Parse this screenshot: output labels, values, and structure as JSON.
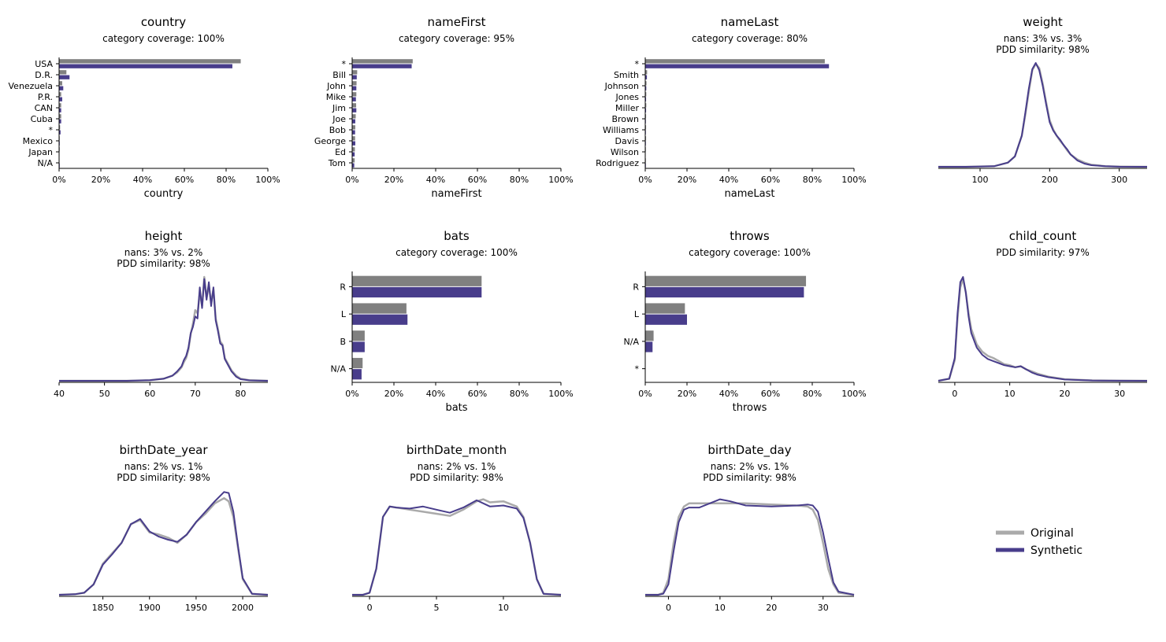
{
  "legend": {
    "original_label": "Original",
    "synthetic_label": "Synthetic",
    "placement": "bottom-right"
  },
  "colors": {
    "original_bar": "#808080",
    "original_line": "#aaaaaa",
    "synthetic": "#483d8b"
  },
  "chart_data": [
    {
      "name": "country",
      "type": "bar",
      "title": "country",
      "subtitle": "category coverage: 100%",
      "xlabel": "country",
      "xlim": [
        0,
        100
      ],
      "xticks": [
        "0%",
        "20%",
        "40%",
        "60%",
        "80%",
        "100%"
      ],
      "categories": [
        "USA",
        "D.R.",
        "Venezuela",
        "P.R.",
        "CAN",
        "Cuba",
        "*",
        "Mexico",
        "Japan",
        "N/A"
      ],
      "series": [
        {
          "values": [
            87,
            3.5,
            1.5,
            1,
            1,
            1,
            0.5,
            0.3,
            0.3,
            0.2
          ]
        },
        {
          "values": [
            83,
            5,
            2,
            1.5,
            1,
            1,
            0.7,
            0.3,
            0.2,
            0.3
          ]
        }
      ]
    },
    {
      "name": "nameFirst",
      "type": "bar",
      "title": "nameFirst",
      "subtitle": "category coverage: 95%",
      "xlabel": "nameFirst",
      "xlim": [
        0,
        100
      ],
      "xticks": [
        "0%",
        "20%",
        "40%",
        "60%",
        "80%",
        "100%"
      ],
      "categories": [
        "*",
        "Bill",
        "John",
        "Mike",
        "Jim",
        "Joe",
        "Bob",
        "George",
        "Ed",
        "Tom"
      ],
      "series": [
        {
          "values": [
            29,
            2.4,
            2.1,
            2,
            1.9,
            1.7,
            1.5,
            1.4,
            1.3,
            1.2
          ]
        },
        {
          "values": [
            28.5,
            2.2,
            2,
            1.8,
            2,
            1.5,
            1.4,
            1.5,
            1.2,
            1
          ]
        }
      ]
    },
    {
      "name": "nameLast",
      "type": "bar",
      "title": "nameLast",
      "subtitle": "category coverage: 80%",
      "xlabel": "nameLast",
      "xlim": [
        0,
        100
      ],
      "xticks": [
        "0%",
        "20%",
        "40%",
        "60%",
        "80%",
        "100%"
      ],
      "categories": [
        "*",
        "Smith",
        "Johnson",
        "Jones",
        "Miller",
        "Brown",
        "Williams",
        "Davis",
        "Wilson",
        "Rodriguez"
      ],
      "series": [
        {
          "values": [
            86,
            0.9,
            0.6,
            0.5,
            0.5,
            0.4,
            0.4,
            0.4,
            0.3,
            0.3
          ]
        },
        {
          "values": [
            88,
            0.8,
            0.5,
            0.4,
            0.4,
            0.3,
            0.3,
            0.3,
            0.2,
            0.3
          ]
        }
      ]
    },
    {
      "name": "weight",
      "type": "line",
      "title": "weight",
      "subtitle": [
        "nans: 3% vs. 3%",
        "PDD similarity: 98%"
      ],
      "xlim": [
        40,
        340
      ],
      "xticks": [
        100,
        200,
        300
      ],
      "ylim": [
        0,
        1
      ],
      "series": [
        {
          "x": [
            40,
            80,
            120,
            140,
            150,
            160,
            165,
            170,
            175,
            180,
            185,
            190,
            195,
            200,
            205,
            210,
            215,
            220,
            225,
            230,
            240,
            250,
            260,
            280,
            300,
            340
          ],
          "y": [
            0,
            0,
            0.005,
            0.04,
            0.1,
            0.3,
            0.5,
            0.72,
            0.93,
            0.99,
            0.95,
            0.8,
            0.62,
            0.45,
            0.36,
            0.3,
            0.25,
            0.21,
            0.16,
            0.12,
            0.07,
            0.04,
            0.02,
            0.006,
            0.002,
            0
          ]
        },
        {
          "x": [
            40,
            80,
            120,
            140,
            150,
            160,
            165,
            170,
            175,
            180,
            185,
            190,
            195,
            200,
            205,
            210,
            215,
            220,
            225,
            230,
            240,
            250,
            260,
            280,
            300,
            340
          ],
          "y": [
            0,
            0,
            0.005,
            0.04,
            0.1,
            0.3,
            0.52,
            0.75,
            0.94,
            1.0,
            0.93,
            0.78,
            0.6,
            0.43,
            0.35,
            0.3,
            0.26,
            0.21,
            0.17,
            0.12,
            0.06,
            0.03,
            0.015,
            0.005,
            0.001,
            0
          ]
        }
      ]
    },
    {
      "name": "height",
      "type": "line",
      "title": "height",
      "subtitle": [
        "nans: 3% vs. 2%",
        "PDD similarity: 98%"
      ],
      "xlim": [
        40,
        86
      ],
      "xticks": [
        40,
        50,
        60,
        70,
        80
      ],
      "ylim": [
        0,
        1
      ],
      "series": [
        {
          "x": [
            40,
            55,
            60,
            63,
            65,
            66,
            67,
            67.5,
            68,
            68.5,
            69,
            69.5,
            70,
            70.5,
            71,
            71.5,
            72,
            72.5,
            73,
            73.5,
            74,
            74.5,
            75,
            75.5,
            76,
            76.5,
            77,
            78,
            79,
            80,
            82,
            86
          ],
          "y": [
            0,
            0,
            0.005,
            0.02,
            0.05,
            0.08,
            0.13,
            0.18,
            0.22,
            0.3,
            0.45,
            0.55,
            0.68,
            0.65,
            0.85,
            0.72,
            1.0,
            0.8,
            0.92,
            0.75,
            0.88,
            0.6,
            0.5,
            0.38,
            0.35,
            0.22,
            0.18,
            0.1,
            0.05,
            0.02,
            0.005,
            0
          ]
        },
        {
          "x": [
            40,
            55,
            60,
            63,
            65,
            66,
            67,
            67.5,
            68,
            68.5,
            69,
            69.5,
            70,
            70.5,
            71,
            71.5,
            72,
            72.5,
            73,
            73.5,
            74,
            74.5,
            75,
            75.5,
            76,
            76.5,
            77,
            78,
            79,
            80,
            82,
            86
          ],
          "y": [
            0,
            0,
            0.005,
            0.02,
            0.05,
            0.09,
            0.14,
            0.2,
            0.24,
            0.32,
            0.46,
            0.52,
            0.62,
            0.6,
            0.9,
            0.7,
            0.98,
            0.78,
            0.95,
            0.72,
            0.9,
            0.58,
            0.48,
            0.36,
            0.34,
            0.21,
            0.17,
            0.09,
            0.04,
            0.015,
            0.004,
            0
          ]
        }
      ]
    },
    {
      "name": "bats",
      "type": "bar",
      "title": "bats",
      "subtitle": "category coverage: 100%",
      "xlabel": "bats",
      "xlim": [
        0,
        100
      ],
      "xticks": [
        "0%",
        "20%",
        "40%",
        "60%",
        "80%",
        "100%"
      ],
      "categories": [
        "R",
        "L",
        "B",
        "N/A"
      ],
      "series": [
        {
          "values": [
            62,
            26,
            6,
            5
          ]
        },
        {
          "values": [
            62,
            26.5,
            6,
            4.5
          ]
        }
      ]
    },
    {
      "name": "throws",
      "type": "bar",
      "title": "throws",
      "subtitle": "category coverage: 100%",
      "xlabel": "throws",
      "xlim": [
        0,
        100
      ],
      "xticks": [
        "0%",
        "20%",
        "40%",
        "60%",
        "80%",
        "100%"
      ],
      "categories": [
        "R",
        "L",
        "N/A",
        "*"
      ],
      "series": [
        {
          "values": [
            77,
            19,
            4,
            0
          ]
        },
        {
          "values": [
            76,
            20,
            3.5,
            0
          ]
        }
      ]
    },
    {
      "name": "child_count",
      "type": "line",
      "title": "child_count",
      "subtitle": [
        "PDD similarity: 97%"
      ],
      "xlim": [
        -3,
        35
      ],
      "xticks": [
        0,
        10,
        20,
        30
      ],
      "ylim": [
        0,
        1
      ],
      "series": [
        {
          "x": [
            -3,
            -1,
            0,
            0.5,
            1,
            1.5,
            2,
            2.5,
            3,
            4,
            5,
            6,
            7,
            8,
            9,
            10,
            11,
            12,
            13,
            14,
            15,
            17,
            20,
            25,
            30,
            35
          ],
          "y": [
            0,
            0.02,
            0.2,
            0.6,
            0.9,
            0.98,
            0.85,
            0.65,
            0.5,
            0.35,
            0.28,
            0.24,
            0.22,
            0.19,
            0.16,
            0.15,
            0.13,
            0.14,
            0.11,
            0.09,
            0.07,
            0.04,
            0.015,
            0.004,
            0.001,
            0
          ]
        },
        {
          "x": [
            -3,
            -1,
            0,
            0.5,
            1,
            1.5,
            2,
            2.5,
            3,
            4,
            5,
            6,
            7,
            8,
            9,
            10,
            11,
            12,
            13,
            14,
            15,
            17,
            20,
            25,
            30,
            35
          ],
          "y": [
            0,
            0.02,
            0.22,
            0.65,
            0.95,
            1.0,
            0.85,
            0.62,
            0.46,
            0.32,
            0.25,
            0.21,
            0.19,
            0.17,
            0.15,
            0.14,
            0.13,
            0.14,
            0.11,
            0.08,
            0.06,
            0.035,
            0.012,
            0.003,
            0.001,
            0
          ]
        }
      ]
    },
    {
      "name": "birthDate_year",
      "type": "line",
      "title": "birthDate_year",
      "subtitle": [
        "nans: 2% vs. 1%",
        "PDD similarity: 98%"
      ],
      "xlim": [
        1803,
        2027
      ],
      "xticks": [
        1850,
        1900,
        1950,
        2000
      ],
      "ylim": [
        0,
        1
      ],
      "series": [
        {
          "x": [
            1803,
            1820,
            1830,
            1840,
            1850,
            1860,
            1870,
            1880,
            1890,
            1900,
            1910,
            1920,
            1930,
            1940,
            1950,
            1960,
            1970,
            1980,
            1985,
            1990,
            1995,
            2000,
            2010,
            2027
          ],
          "y": [
            0,
            0.005,
            0.02,
            0.1,
            0.3,
            0.4,
            0.5,
            0.68,
            0.72,
            0.6,
            0.58,
            0.55,
            0.5,
            0.58,
            0.7,
            0.78,
            0.88,
            0.93,
            0.9,
            0.75,
            0.45,
            0.15,
            0.01,
            0
          ]
        },
        {
          "x": [
            1803,
            1820,
            1830,
            1840,
            1850,
            1860,
            1870,
            1880,
            1890,
            1900,
            1910,
            1920,
            1930,
            1940,
            1950,
            1960,
            1970,
            1980,
            1985,
            1990,
            1995,
            2000,
            2010,
            2027
          ],
          "y": [
            0,
            0.005,
            0.02,
            0.1,
            0.29,
            0.39,
            0.5,
            0.68,
            0.73,
            0.61,
            0.56,
            0.53,
            0.51,
            0.58,
            0.7,
            0.8,
            0.9,
            0.99,
            0.98,
            0.8,
            0.47,
            0.16,
            0.01,
            0
          ]
        }
      ]
    },
    {
      "name": "birthDate_month",
      "type": "line",
      "title": "birthDate_month",
      "subtitle": [
        "nans: 2% vs. 1%",
        "PDD similarity: 98%"
      ],
      "xlim": [
        -1.3,
        14.3
      ],
      "xticks": [
        0,
        5,
        10
      ],
      "ylim": [
        0,
        1
      ],
      "series": [
        {
          "x": [
            -1.3,
            -0.5,
            0,
            0.5,
            1,
            1.5,
            2,
            3,
            4,
            5,
            6,
            7,
            8,
            8.5,
            9,
            10,
            11,
            11.5,
            12,
            12.5,
            13,
            14.3
          ],
          "y": [
            0,
            0,
            0.02,
            0.25,
            0.75,
            0.85,
            0.84,
            0.82,
            0.8,
            0.78,
            0.76,
            0.82,
            0.9,
            0.92,
            0.89,
            0.9,
            0.85,
            0.75,
            0.5,
            0.15,
            0.01,
            0
          ]
        },
        {
          "x": [
            -1.3,
            -0.5,
            0,
            0.5,
            1,
            1.5,
            2,
            3,
            4,
            5,
            6,
            7,
            8,
            8.5,
            9,
            10,
            11,
            11.5,
            12,
            12.5,
            13,
            14.3
          ],
          "y": [
            0,
            0,
            0.02,
            0.25,
            0.75,
            0.85,
            0.84,
            0.83,
            0.85,
            0.82,
            0.79,
            0.84,
            0.91,
            0.88,
            0.85,
            0.86,
            0.83,
            0.74,
            0.5,
            0.15,
            0.01,
            0
          ]
        }
      ]
    },
    {
      "name": "birthDate_day",
      "type": "line",
      "title": "birthDate_day",
      "subtitle": [
        "nans: 2% vs. 1%",
        "PDD similarity: 98%"
      ],
      "xlim": [
        -4.5,
        36
      ],
      "xticks": [
        0,
        10,
        20,
        30
      ],
      "ylim": [
        0,
        1
      ],
      "series": [
        {
          "x": [
            -4.5,
            -2,
            -1,
            0,
            1,
            2,
            3,
            4,
            6,
            8,
            10,
            12,
            15,
            20,
            25,
            27,
            28,
            29,
            30,
            31,
            32,
            33,
            36
          ],
          "y": [
            0,
            0,
            0.02,
            0.15,
            0.5,
            0.75,
            0.85,
            0.88,
            0.88,
            0.88,
            0.88,
            0.88,
            0.88,
            0.87,
            0.86,
            0.85,
            0.82,
            0.72,
            0.5,
            0.25,
            0.1,
            0.02,
            0
          ]
        },
        {
          "x": [
            -4.5,
            -2,
            -1,
            0,
            1,
            2,
            3,
            4,
            6,
            8,
            10,
            12,
            15,
            20,
            25,
            27,
            28,
            29,
            30,
            31,
            32,
            33,
            36
          ],
          "y": [
            0,
            0,
            0.01,
            0.1,
            0.42,
            0.7,
            0.82,
            0.84,
            0.84,
            0.88,
            0.92,
            0.9,
            0.86,
            0.85,
            0.86,
            0.87,
            0.86,
            0.8,
            0.6,
            0.35,
            0.12,
            0.03,
            0
          ]
        }
      ]
    }
  ]
}
